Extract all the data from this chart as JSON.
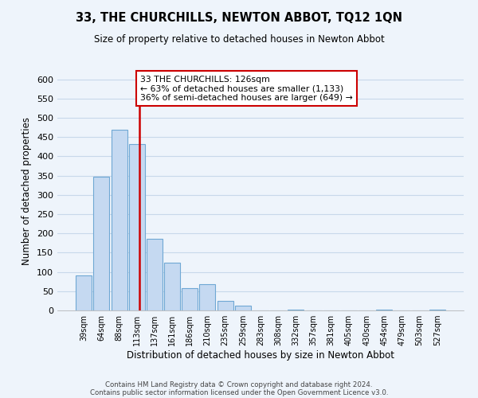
{
  "title": "33, THE CHURCHILLS, NEWTON ABBOT, TQ12 1QN",
  "subtitle": "Size of property relative to detached houses in Newton Abbot",
  "xlabel": "Distribution of detached houses by size in Newton Abbot",
  "ylabel": "Number of detached properties",
  "bar_labels": [
    "39sqm",
    "64sqm",
    "88sqm",
    "113sqm",
    "137sqm",
    "161sqm",
    "186sqm",
    "210sqm",
    "235sqm",
    "259sqm",
    "283sqm",
    "308sqm",
    "332sqm",
    "357sqm",
    "381sqm",
    "405sqm",
    "430sqm",
    "454sqm",
    "479sqm",
    "503sqm",
    "527sqm"
  ],
  "bar_values": [
    90,
    348,
    470,
    432,
    186,
    124,
    57,
    68,
    25,
    13,
    0,
    0,
    2,
    0,
    0,
    0,
    0,
    2,
    0,
    0,
    2
  ],
  "bar_color": "#c5d9f1",
  "bar_edge_color": "#6fa8d4",
  "vline_x_index": 3,
  "vline_x_offset": 0.15,
  "vline_color": "#cc0000",
  "annotation_line1": "33 THE CHURCHILLS: 126sqm",
  "annotation_line2": "← 63% of detached houses are smaller (1,133)",
  "annotation_line3": "36% of semi-detached houses are larger (649) →",
  "annotation_box_color": "#ffffff",
  "annotation_box_edge": "#cc0000",
  "ylim": [
    0,
    620
  ],
  "yticks": [
    0,
    50,
    100,
    150,
    200,
    250,
    300,
    350,
    400,
    450,
    500,
    550,
    600
  ],
  "grid_color": "#c8d8ea",
  "footer_line1": "Contains HM Land Registry data © Crown copyright and database right 2024.",
  "footer_line2": "Contains public sector information licensed under the Open Government Licence v3.0.",
  "bg_color": "#eef4fb"
}
